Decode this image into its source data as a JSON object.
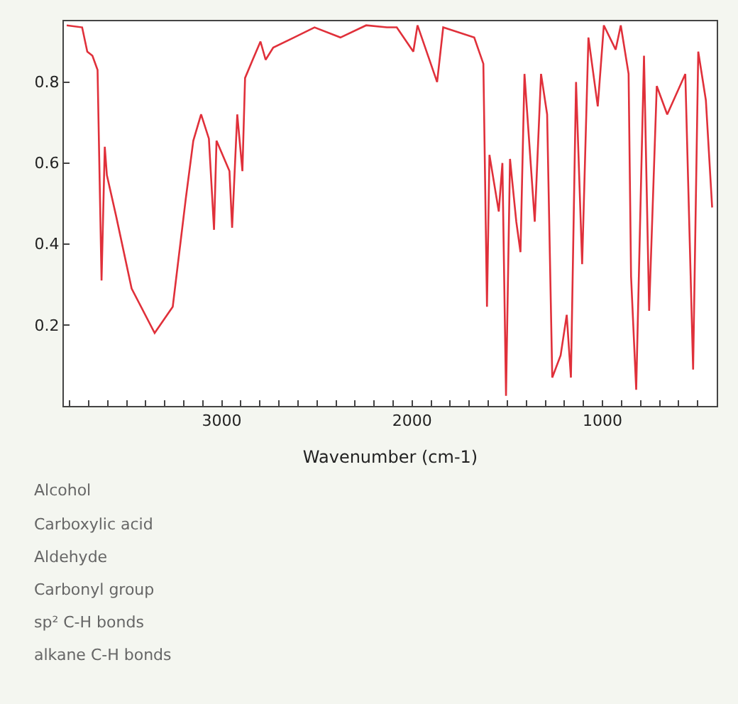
{
  "chart_data": {
    "type": "line",
    "xlabel": "Wavenumber (cm-1)",
    "x": [
      3815,
      3734,
      3707,
      3680,
      3653,
      3632,
      3615,
      3604,
      3556,
      3474,
      3353,
      3258,
      3190,
      3150,
      3109,
      3068,
      3041,
      3028,
      2960,
      2946,
      2919,
      2892,
      2878,
      2838,
      2797,
      2770,
      2730,
      2621,
      2513,
      2377,
      2242,
      2133,
      2081,
      1994,
      1972,
      1869,
      1837,
      1674,
      1626,
      1607,
      1594,
      1545,
      1526,
      1507,
      1486,
      1453,
      1431,
      1410,
      1356,
      1323,
      1291,
      1264,
      1220,
      1188,
      1166,
      1139,
      1107,
      1074,
      1025,
      993,
      931,
      904,
      863,
      850,
      823,
      782,
      755,
      715,
      660,
      565,
      524,
      497,
      457,
      424
    ],
    "series": [
      {
        "color": "#e0303a",
        "values": [
          0.94,
          0.935,
          0.875,
          0.865,
          0.83,
          0.31,
          0.64,
          0.57,
          0.47,
          0.29,
          0.18,
          0.245,
          0.51,
          0.655,
          0.72,
          0.66,
          0.435,
          0.655,
          0.58,
          0.44,
          0.72,
          0.58,
          0.81,
          0.855,
          0.9,
          0.855,
          0.885,
          0.91,
          0.935,
          0.91,
          0.94,
          0.935,
          0.935,
          0.875,
          0.94,
          0.8,
          0.935,
          0.91,
          0.845,
          0.245,
          0.62,
          0.48,
          0.6,
          0.025,
          0.61,
          0.455,
          0.38,
          0.82,
          0.455,
          0.82,
          0.72,
          0.07,
          0.125,
          0.225,
          0.07,
          0.8,
          0.35,
          0.91,
          0.74,
          0.94,
          0.88,
          0.94,
          0.82,
          0.32,
          0.04,
          0.865,
          0.235,
          0.79,
          0.72,
          0.82,
          0.09,
          0.875,
          0.755,
          0.49
        ]
      }
    ],
    "xlim": [
      3830,
      400
    ],
    "xticks": [
      {
        "value": 3800,
        "label": null
      },
      {
        "value": 3700,
        "label": null
      },
      {
        "value": 3600,
        "label": null
      },
      {
        "value": 3500,
        "label": null
      },
      {
        "value": 3400,
        "label": null
      },
      {
        "value": 3300,
        "label": null
      },
      {
        "value": 3200,
        "label": null
      },
      {
        "value": 3100,
        "label": null
      },
      3000,
      {
        "value": 2900,
        "label": null
      },
      {
        "value": 2800,
        "label": null
      },
      {
        "value": 2700,
        "label": null
      },
      {
        "value": 2600,
        "label": null
      },
      {
        "value": 2500,
        "label": null
      },
      {
        "value": 2400,
        "label": null
      },
      {
        "value": 2300,
        "label": null
      },
      {
        "value": 2200,
        "label": null
      },
      {
        "value": 2100,
        "label": null
      },
      2000,
      {
        "value": 1900,
        "label": null
      },
      {
        "value": 1800,
        "label": null
      },
      {
        "value": 1700,
        "label": null
      },
      {
        "value": 1600,
        "label": null
      },
      {
        "value": 1500,
        "label": null
      },
      {
        "value": 1400,
        "label": null
      },
      {
        "value": 1300,
        "label": null
      },
      {
        "value": 1200,
        "label": null
      },
      {
        "value": 1100,
        "label": null
      },
      1000,
      {
        "value": 900,
        "label": null
      },
      {
        "value": 800,
        "label": null
      },
      {
        "value": 700,
        "label": null
      },
      {
        "value": 600,
        "label": null
      },
      {
        "value": 500,
        "label": null
      }
    ],
    "ylim": [
      0,
      0.95
    ],
    "yticks": [
      0.2,
      0.4,
      0.6,
      0.8
    ],
    "marker": "none",
    "line_style": "solid",
    "annotations": [
      "Alcohol",
      "Carboxylic acid",
      "Aldehyde",
      "Carbonyl group",
      "sp² C-H bonds",
      "alkane C-H bonds"
    ]
  }
}
